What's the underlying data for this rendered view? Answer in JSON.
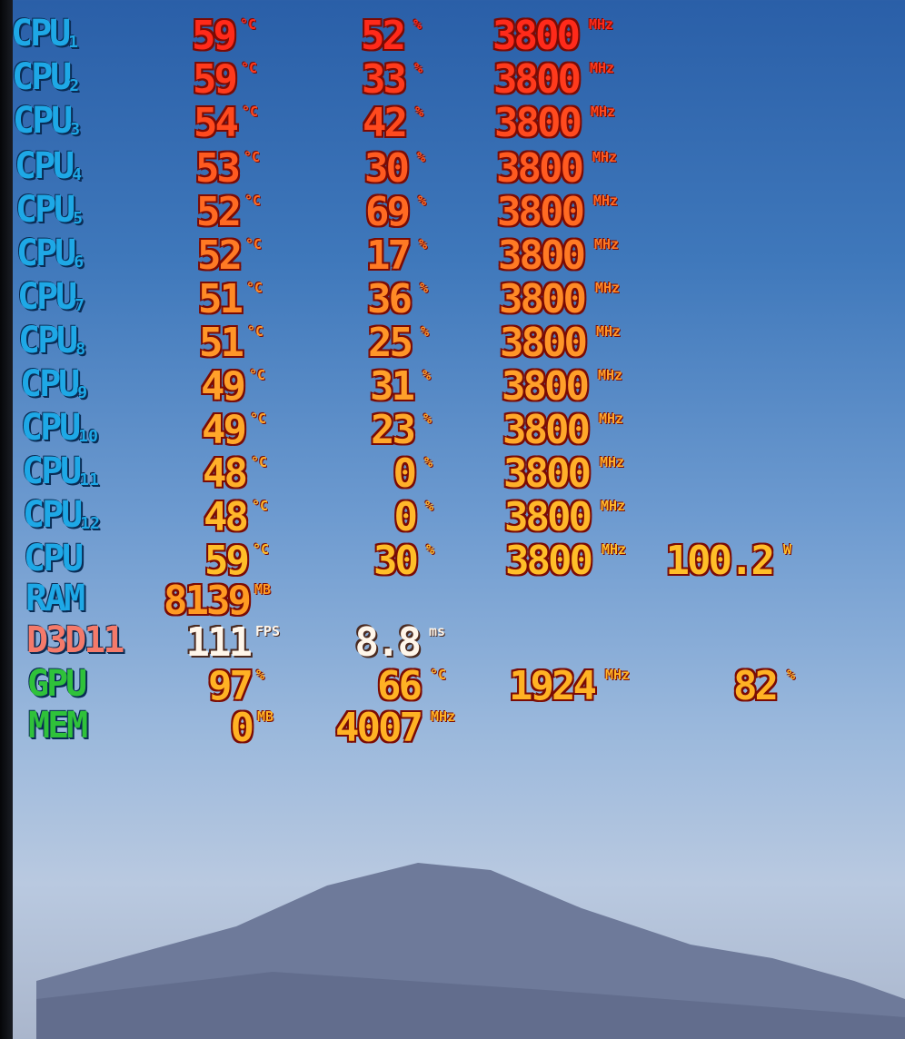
{
  "colors": {
    "cpu_label": "#1ea8e6",
    "d3d_label": "#f47a6a",
    "gpu_label": "#2fc23a",
    "fps_value": "#fff6ea"
  },
  "rows": [
    {
      "label": "CPU",
      "sub": "1",
      "group": "cpu",
      "color": "#ff2a1a",
      "cells": [
        [
          "59",
          "°C"
        ],
        [
          "52",
          "%"
        ],
        [
          "3800",
          "MHz"
        ]
      ]
    },
    {
      "label": "CPU",
      "sub": "2",
      "group": "cpu",
      "color": "#ff3a1c",
      "cells": [
        [
          "59",
          "°C"
        ],
        [
          "33",
          "%"
        ],
        [
          "3800",
          "MHz"
        ]
      ]
    },
    {
      "label": "CPU",
      "sub": "3",
      "group": "cpu",
      "color": "#ff4a1e",
      "cells": [
        [
          "54",
          "°C"
        ],
        [
          "42",
          "%"
        ],
        [
          "3800",
          "MHz"
        ]
      ]
    },
    {
      "label": "CPU",
      "sub": "4",
      "group": "cpu",
      "color": "#ff5a20",
      "cells": [
        [
          "53",
          "°C"
        ],
        [
          "30",
          "%"
        ],
        [
          "3800",
          "MHz"
        ]
      ]
    },
    {
      "label": "CPU",
      "sub": "5",
      "group": "cpu",
      "color": "#ff6a22",
      "cells": [
        [
          "52",
          "°C"
        ],
        [
          "69",
          "%"
        ],
        [
          "3800",
          "MHz"
        ]
      ]
    },
    {
      "label": "CPU",
      "sub": "6",
      "group": "cpu",
      "color": "#ff7a24",
      "cells": [
        [
          "52",
          "°C"
        ],
        [
          "17",
          "%"
        ],
        [
          "3800",
          "MHz"
        ]
      ]
    },
    {
      "label": "CPU",
      "sub": "7",
      "group": "cpu",
      "color": "#ff8a26",
      "cells": [
        [
          "51",
          "°C"
        ],
        [
          "36",
          "%"
        ],
        [
          "3800",
          "MHz"
        ]
      ]
    },
    {
      "label": "CPU",
      "sub": "8",
      "group": "cpu",
      "color": "#ff9628",
      "cells": [
        [
          "51",
          "°C"
        ],
        [
          "25",
          "%"
        ],
        [
          "3800",
          "MHz"
        ]
      ]
    },
    {
      "label": "CPU",
      "sub": "9",
      "group": "cpu",
      "color": "#ffa02a",
      "cells": [
        [
          "49",
          "°C"
        ],
        [
          "31",
          "%"
        ],
        [
          "3800",
          "MHz"
        ]
      ]
    },
    {
      "label": "CPU",
      "sub": "10",
      "group": "cpu",
      "color": "#ffa82a",
      "cells": [
        [
          "49",
          "°C"
        ],
        [
          "23",
          "%"
        ],
        [
          "3800",
          "MHz"
        ]
      ]
    },
    {
      "label": "CPU",
      "sub": "11",
      "group": "cpu",
      "color": "#ffb02a",
      "cells": [
        [
          "48",
          "°C"
        ],
        [
          "0",
          "%"
        ],
        [
          "3800",
          "MHz"
        ]
      ]
    },
    {
      "label": "CPU",
      "sub": "12",
      "group": "cpu",
      "color": "#ffb82a",
      "cells": [
        [
          "48",
          "°C"
        ],
        [
          "0",
          "%"
        ],
        [
          "3800",
          "MHz"
        ]
      ]
    },
    {
      "label": "CPU",
      "sub": "",
      "group": "cpu",
      "color": "#ffbe28",
      "cells": [
        [
          "59",
          "°C"
        ],
        [
          "30",
          "%"
        ],
        [
          "3800",
          "MHz"
        ],
        [
          "100.2",
          "W"
        ]
      ]
    },
    {
      "label": "RAM",
      "sub": "",
      "group": "cpu",
      "color": "#ff9a22",
      "cells": [
        [
          "8139",
          "MB"
        ]
      ]
    },
    {
      "label": "D3D11",
      "sub": "",
      "group": "d3d",
      "color": "#fff6ea",
      "cells": [
        [
          "111",
          "FPS"
        ],
        [
          "8.8",
          "ms"
        ]
      ]
    },
    {
      "label": "GPU",
      "sub": "",
      "group": "gpu",
      "color": "#ffb224",
      "cells": [
        [
          "97",
          "%"
        ],
        [
          "66",
          "°C"
        ],
        [
          "1924",
          "MHz"
        ],
        [
          "82",
          "%"
        ]
      ]
    },
    {
      "label": "MEM",
      "sub": "",
      "group": "gpu",
      "color": "#ffb224",
      "cells": [
        [
          "0",
          "MB"
        ],
        [
          "4007",
          "MHz"
        ]
      ]
    }
  ]
}
